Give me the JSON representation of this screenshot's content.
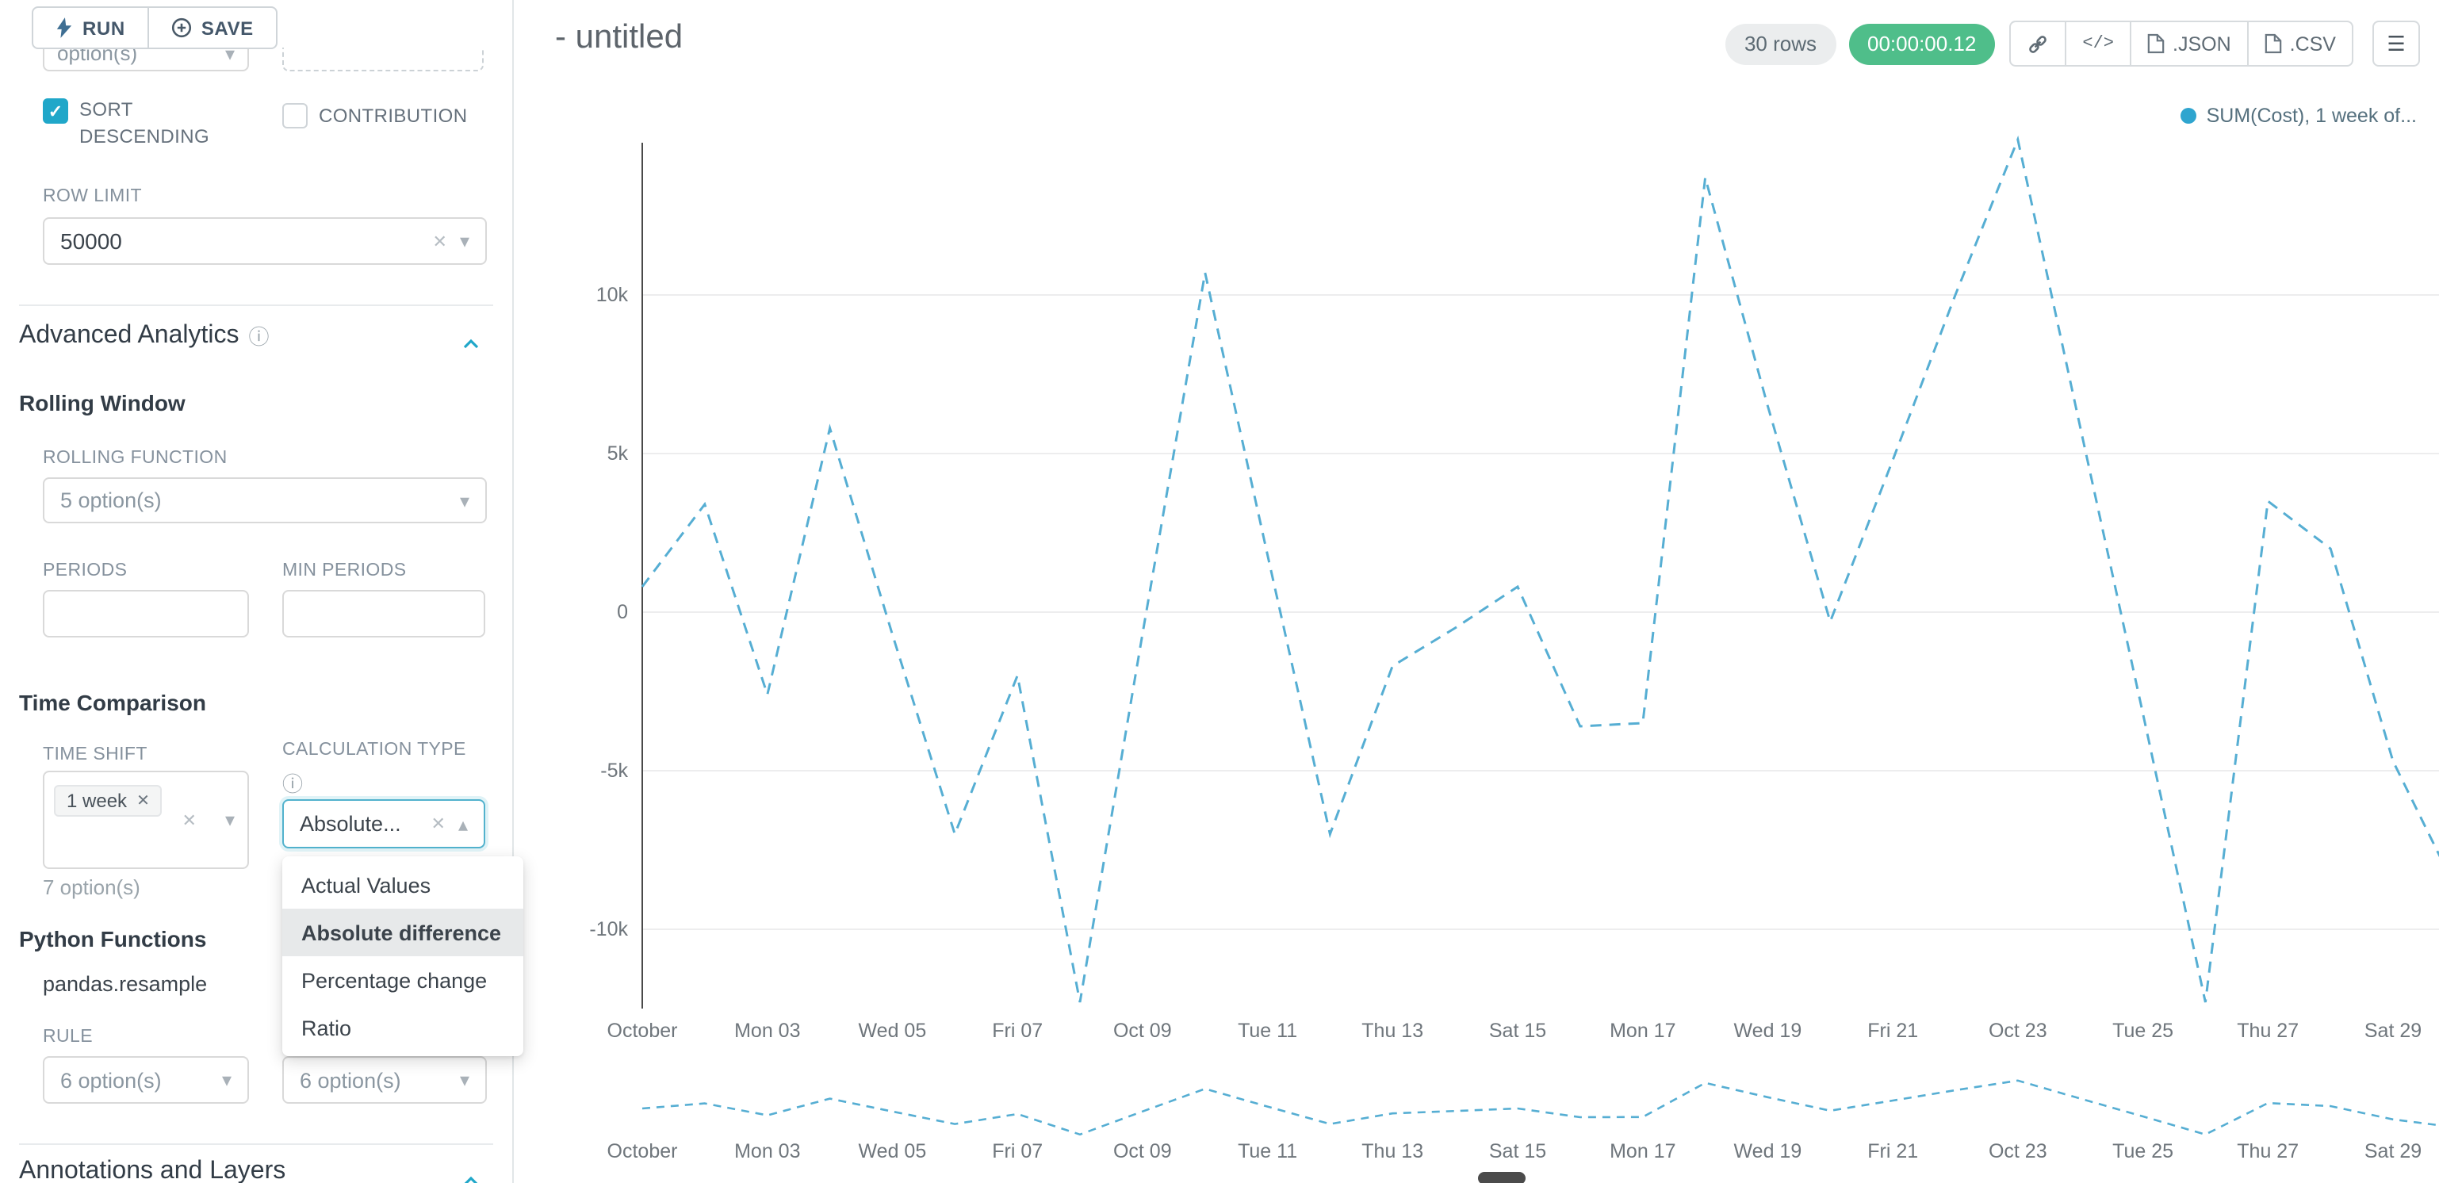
{
  "colors": {
    "accent": "#20a7c9",
    "timer_badge": "#4fbe8a",
    "legend_dot": "#2fa5cf",
    "line": "#56aed3"
  },
  "icons": {
    "caret_down": "▾",
    "caret_up": "▴",
    "clear": "✕",
    "check": "✓",
    "info": "ⓘ",
    "menu": "☰",
    "code": "</>"
  },
  "toolbar": {
    "run": "RUN",
    "save": "SAVE"
  },
  "panel": {
    "partial": {
      "left_value": "option(s)"
    },
    "sort_descending": "SORT DESCENDING",
    "contribution": "CONTRIBUTION",
    "row_limit_label": "ROW LIMIT",
    "row_limit_value": "50000",
    "advanced_analytics_title": "Advanced Analytics",
    "rolling_window_title": "Rolling Window",
    "rolling_function_label": "ROLLING FUNCTION",
    "rolling_function_value": "5 option(s)",
    "periods_label": "PERIODS",
    "min_periods_label": "MIN PERIODS",
    "time_comparison_title": "Time Comparison",
    "time_shift_label": "TIME SHIFT",
    "time_shift_tag": "1 week",
    "time_shift_hint": "7 option(s)",
    "calculation_type_label": "CALCULATION TYPE",
    "calculation_type_value": "Absolute...",
    "dropdown_options": [
      "Actual Values",
      "Absolute difference",
      "Percentage change",
      "Ratio"
    ],
    "dropdown_selected": "Absolute difference",
    "python_functions_title": "Python Functions",
    "python_function_name": "pandas.resample",
    "rule_label": "RULE",
    "rule_value_1": "6 option(s)",
    "rule_value_2": "6 option(s)",
    "annotations_title": "Annotations and Layers"
  },
  "header": {
    "title": "- untitled",
    "rows_badge": "30 rows",
    "timer": "00:00:00.12",
    "json_btn": ".JSON",
    "csv_btn": ".CSV"
  },
  "legend_label": "SUM(Cost), 1 week of...",
  "chart_data": {
    "type": "line",
    "title": "",
    "legend": "SUM(Cost), 1 week of...",
    "dashed": true,
    "line_color": "#56aed3",
    "grid": true,
    "legend_position": "top-right",
    "x_tick_labels": [
      "October",
      "Mon 03",
      "Wed 05",
      "Fri 07",
      "Oct 09",
      "Tue 11",
      "Thu 13",
      "Sat 15",
      "Mon 17",
      "Wed 19",
      "Fri 21",
      "Oct 23",
      "Tue 25",
      "Thu 27",
      "Sat 29"
    ],
    "y_ticks": [
      10000,
      5000,
      0,
      -5000,
      -10000
    ],
    "y_tick_labels": [
      "10k",
      "5k",
      "0",
      "-5k",
      "-10k"
    ],
    "ylim": [
      -13000,
      15200
    ],
    "series": [
      {
        "name": "SUM(Cost), 1 week of...",
        "values": [
          800,
          3400,
          -2600,
          5800,
          -700,
          -7000,
          -2000,
          -12300,
          -700,
          10700,
          1800,
          -7000,
          -1700,
          -500,
          800,
          -3600,
          -3500,
          13700,
          6500,
          -300,
          4800,
          10000,
          14900,
          5800,
          -3200,
          -12300,
          3500,
          2000,
          -4700,
          -8700
        ]
      }
    ],
    "has_mini_preview": true
  }
}
